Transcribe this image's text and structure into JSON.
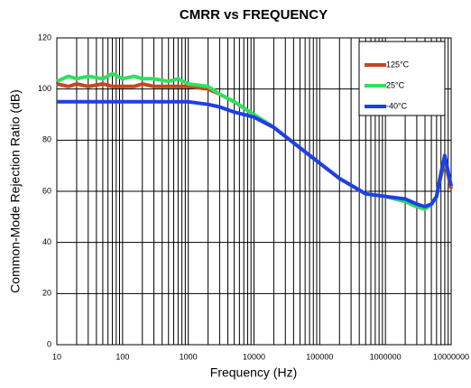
{
  "chart_data": {
    "type": "line",
    "title": "CMRR vs FREQUENCY",
    "x_label": "Frequency (Hz)",
    "y_label": "Common-Mode Rejection Ratio (dB)",
    "x": [
      10,
      15,
      20,
      30,
      50,
      70,
      100,
      150,
      200,
      300,
      500,
      700,
      1000,
      2000,
      3000,
      5000,
      10000,
      20000,
      50000,
      100000,
      200000,
      500000,
      1000000,
      2000000,
      3000000,
      4000000,
      5000000,
      6000000,
      7000000,
      8000000,
      10000000
    ],
    "series": [
      {
        "name": "125°C",
        "color": "#c8461e",
        "values": [
          102,
          101,
          102,
          101,
          102,
          101,
          101,
          101,
          102,
          101,
          101,
          101,
          101,
          100,
          98,
          95,
          90,
          85,
          77,
          71,
          65,
          59,
          58,
          56,
          54,
          53,
          55,
          58,
          66,
          72,
          61
        ]
      },
      {
        "name": "25°C",
        "color": "#30e060",
        "values": [
          103,
          105,
          104,
          105,
          104,
          106,
          104,
          105,
          104,
          104,
          103,
          104,
          102,
          101,
          98,
          95,
          90,
          85,
          77,
          71,
          65,
          59,
          58,
          56,
          54,
          53,
          55,
          58,
          67,
          73,
          62
        ]
      },
      {
        "name": "-40°C",
        "color": "#1f3fe6",
        "values": [
          95,
          95,
          95,
          95,
          95,
          95,
          95,
          95,
          95,
          95,
          95,
          95,
          95,
          94,
          93,
          91,
          89,
          85,
          77,
          71,
          65,
          59,
          58,
          57,
          55,
          54,
          55,
          58,
          67,
          74,
          62
        ]
      }
    ],
    "xlim": [
      10,
      10000000
    ],
    "xticks": [
      10,
      100,
      1000,
      10000,
      100000,
      1000000,
      10000000
    ],
    "x_log": true,
    "ylim": [
      0,
      120
    ],
    "yticks": [
      0,
      20,
      40,
      60,
      80,
      100,
      120
    ],
    "grid": true,
    "minor_grid": true,
    "legend": "upper right"
  }
}
